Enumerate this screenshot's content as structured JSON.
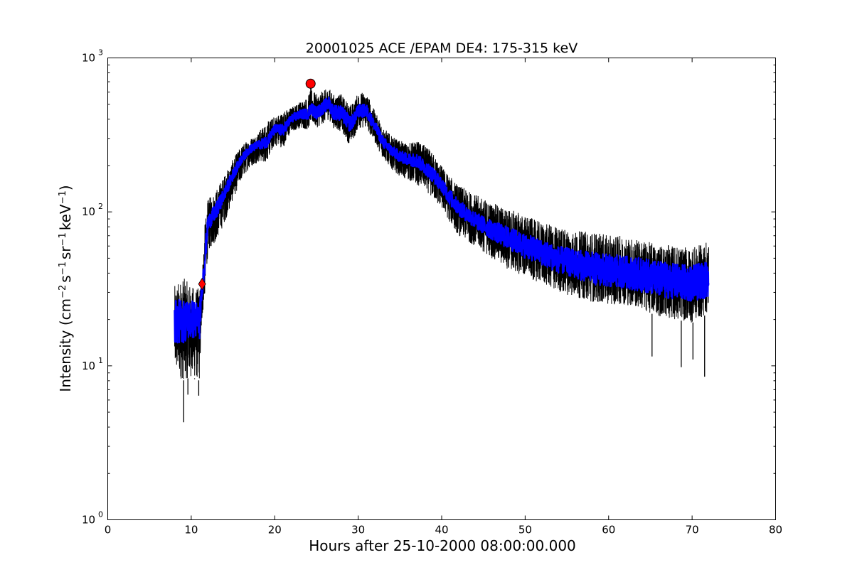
{
  "chart_data": {
    "type": "line",
    "title": "20001025 ACE /EPAM DE4: 175-315 keV",
    "xlabel": "Hours after 25-10-2000 08:00:00.000",
    "ylabel": {
      "parts": [
        "Intensity (cm",
        "−2",
        "s",
        "−1",
        "sr",
        "−1",
        "keV",
        "−1",
        ")"
      ]
    },
    "x_axis": {
      "min": 0,
      "max": 80,
      "ticks": [
        0,
        10,
        20,
        30,
        40,
        50,
        60,
        70,
        80
      ],
      "tick_labels": [
        "0",
        "10",
        "20",
        "30",
        "40",
        "50",
        "60",
        "70",
        "80"
      ]
    },
    "y_axis": {
      "scale": "log",
      "min": 1,
      "max": 1000,
      "ticks": [
        1,
        10,
        100,
        1000
      ],
      "tick_labels": [
        {
          "base": "10",
          "exp": "0"
        },
        {
          "base": "10",
          "exp": "1"
        },
        {
          "base": "10",
          "exp": "2"
        },
        {
          "base": "10",
          "exp": "3"
        }
      ]
    },
    "grid": false,
    "series": [
      {
        "role": "raw",
        "color": "#000000",
        "envelope": {
          "x": [
            8,
            9,
            10,
            11,
            11.3,
            11.6,
            12,
            13,
            14,
            15,
            16,
            17,
            18,
            19,
            20,
            21,
            22,
            23,
            24,
            24.3,
            25,
            26,
            26.5,
            27,
            28,
            29,
            29.5,
            30,
            31,
            32,
            33,
            34,
            35,
            36,
            37,
            38,
            39,
            40,
            41,
            42,
            44,
            46,
            48,
            50,
            52,
            54,
            56,
            58,
            60,
            62,
            64,
            66,
            68,
            70,
            72
          ],
          "low": [
            9,
            8,
            8.5,
            8,
            20,
            27,
            55,
            65,
            85,
            120,
            160,
            195,
            210,
            210,
            270,
            260,
            330,
            350,
            340,
            380,
            350,
            380,
            400,
            350,
            330,
            270,
            300,
            350,
            350,
            280,
            220,
            190,
            170,
            160,
            150,
            140,
            120,
            105,
            85,
            70,
            60,
            50,
            42,
            38,
            34,
            30,
            28,
            26,
            25,
            25,
            23,
            21,
            20,
            19,
            22
          ],
          "high": [
            33,
            38,
            33,
            32,
            40,
            80,
            120,
            140,
            175,
            220,
            270,
            300,
            330,
            380,
            420,
            450,
            480,
            520,
            560,
            640,
            580,
            620,
            640,
            580,
            580,
            500,
            520,
            600,
            600,
            450,
            360,
            310,
            290,
            280,
            290,
            270,
            240,
            200,
            170,
            150,
            130,
            115,
            105,
            95,
            85,
            80,
            75,
            75,
            70,
            70,
            65,
            62,
            60,
            58,
            65
          ]
        },
        "spikes": [
          {
            "x": 9.1,
            "y": 4.3
          },
          {
            "x": 9.6,
            "y": 6.5
          },
          {
            "x": 10.9,
            "y": 6.4
          },
          {
            "x": 10.4,
            "y": 8.2
          },
          {
            "x": 65.2,
            "y": 11.5
          },
          {
            "x": 68.7,
            "y": 9.8
          },
          {
            "x": 70.1,
            "y": 11.0
          },
          {
            "x": 71.5,
            "y": 8.5
          }
        ]
      },
      {
        "role": "smoothed",
        "color": "#0000ff",
        "x": [
          8,
          9,
          10,
          11,
          11.3,
          11.6,
          12,
          13,
          14,
          15,
          16,
          17,
          18,
          19,
          20,
          21,
          22,
          23,
          24,
          24.3,
          25,
          26,
          26.5,
          27,
          28,
          29,
          29.5,
          30,
          31,
          32,
          33,
          34,
          35,
          36,
          37,
          38,
          39,
          40,
          41,
          42,
          44,
          46,
          48,
          50,
          52,
          54,
          56,
          58,
          60,
          62,
          64,
          66,
          68,
          70,
          72
        ],
        "low": [
          14,
          14,
          15,
          15,
          28,
          38,
          75,
          90,
          120,
          160,
          205,
          240,
          255,
          260,
          320,
          310,
          380,
          400,
          400,
          430,
          400,
          440,
          460,
          400,
          390,
          330,
          360,
          410,
          410,
          330,
          260,
          230,
          210,
          200,
          195,
          175,
          155,
          135,
          110,
          95,
          78,
          66,
          57,
          50,
          45,
          40,
          37,
          34,
          32,
          32,
          30,
          28,
          27,
          26,
          28
        ],
        "high": [
          27,
          27,
          27,
          26,
          36,
          58,
          95,
          115,
          145,
          190,
          235,
          270,
          290,
          310,
          370,
          370,
          430,
          460,
          470,
          520,
          480,
          540,
          560,
          500,
          490,
          420,
          440,
          500,
          500,
          390,
          310,
          270,
          250,
          240,
          240,
          215,
          195,
          165,
          140,
          120,
          100,
          88,
          80,
          72,
          66,
          60,
          57,
          55,
          53,
          52,
          50,
          48,
          46,
          45,
          48
        ]
      }
    ],
    "markers": [
      {
        "name": "onset",
        "shape": "diamond",
        "color": "#ff0000",
        "x": 11.3,
        "y": 34
      },
      {
        "name": "peak",
        "shape": "circle",
        "color": "#ff0000",
        "x": 24.3,
        "y": 680
      }
    ]
  }
}
